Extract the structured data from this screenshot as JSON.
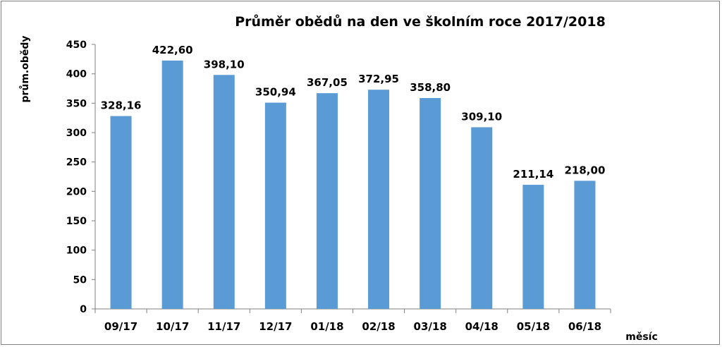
{
  "chart_data": {
    "type": "bar",
    "title": "Průměr obědů na den ve školním roce 2017/2018",
    "xlabel": "měsíc",
    "ylabel": "prům.obědy",
    "categories": [
      "09/17",
      "10/17",
      "11/17",
      "12/17",
      "01/18",
      "02/18",
      "03/18",
      "04/18",
      "05/18",
      "06/18"
    ],
    "values": [
      328.16,
      422.6,
      398.1,
      350.94,
      367.05,
      372.95,
      358.8,
      309.1,
      211.14,
      218.0
    ],
    "value_labels": [
      "328,16",
      "422,60",
      "398,10",
      "350,94",
      "367,05",
      "372,95",
      "358,80",
      "309,10",
      "211,14",
      "218,00"
    ],
    "ylim": [
      0,
      450
    ],
    "yticks": [
      0,
      50,
      100,
      150,
      200,
      250,
      300,
      350,
      400,
      450
    ],
    "grid": false,
    "legend": "none",
    "bar_color": "#5b9bd5"
  }
}
